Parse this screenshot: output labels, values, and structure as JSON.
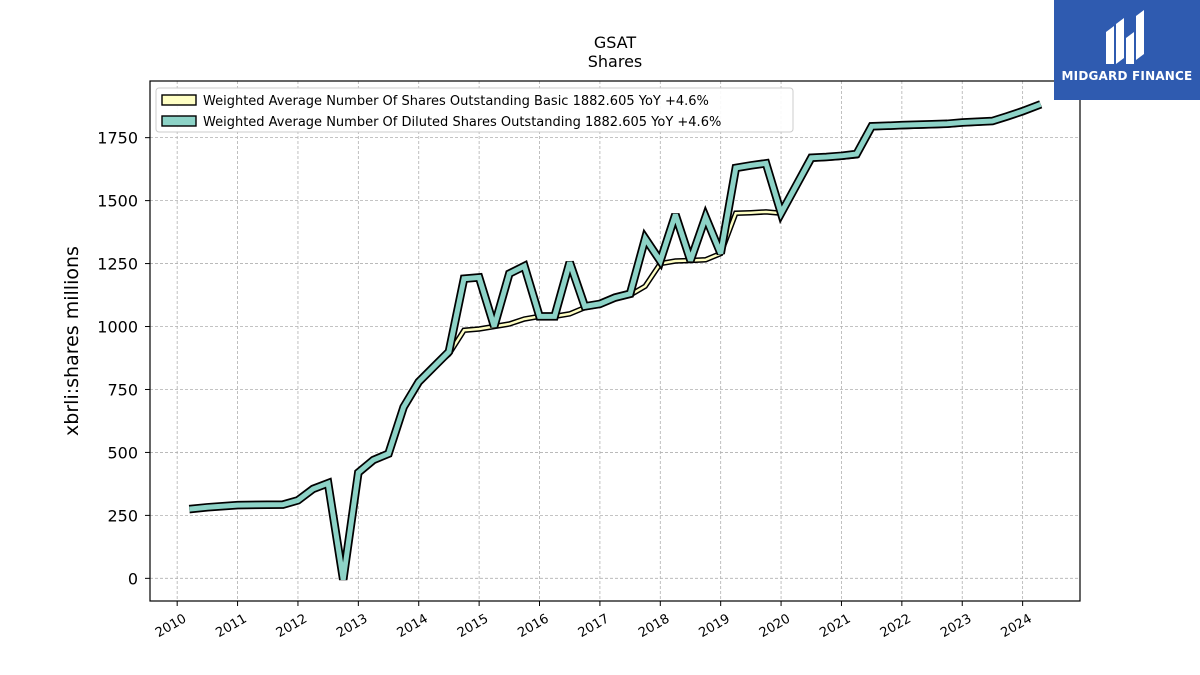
{
  "chart_data": {
    "type": "line",
    "title": "GSAT",
    "subtitle": "Shares",
    "ylabel": "xbrli:shares millions",
    "xlabel": "",
    "ylim": [
      -90,
      1975
    ],
    "xlim": [
      2009.55,
      2024.95
    ],
    "x_ticks": [
      2010,
      2011,
      2012,
      2013,
      2014,
      2015,
      2016,
      2017,
      2018,
      2019,
      2020,
      2021,
      2022,
      2023,
      2024
    ],
    "y_ticks": [
      0,
      250,
      500,
      750,
      1000,
      1250,
      1500,
      1750
    ],
    "grid": true,
    "legend_position": "top-left",
    "series": [
      {
        "name": "Weighted Average Number Of Shares Outstanding Basic  1882.605 YoY +4.6%",
        "color": "#ffffc4",
        "points": [
          [
            2010.2,
            275
          ],
          [
            2010.5,
            282
          ],
          [
            2011.0,
            291
          ],
          [
            2011.5,
            292
          ],
          [
            2011.75,
            293
          ],
          [
            2012.0,
            310
          ],
          [
            2012.25,
            355
          ],
          [
            2012.5,
            378
          ],
          [
            2012.75,
            -5
          ],
          [
            2013.0,
            420
          ],
          [
            2013.25,
            470
          ],
          [
            2013.5,
            495
          ],
          [
            2013.75,
            680
          ],
          [
            2014.0,
            780
          ],
          [
            2014.25,
            840
          ],
          [
            2014.5,
            890
          ],
          [
            2014.75,
            985
          ],
          [
            2015.0,
            990
          ],
          [
            2015.25,
            1000
          ],
          [
            2015.5,
            1010
          ],
          [
            2015.75,
            1030
          ],
          [
            2016.0,
            1040
          ],
          [
            2016.25,
            1040
          ],
          [
            2016.5,
            1050
          ],
          [
            2016.75,
            1075
          ],
          [
            2017.0,
            1085
          ],
          [
            2017.25,
            1110
          ],
          [
            2017.5,
            1125
          ],
          [
            2017.75,
            1160
          ],
          [
            2018.0,
            1250
          ],
          [
            2018.25,
            1260
          ],
          [
            2018.5,
            1262
          ],
          [
            2018.75,
            1265
          ],
          [
            2019.0,
            1290
          ],
          [
            2019.25,
            1450
          ],
          [
            2019.5,
            1452
          ],
          [
            2019.75,
            1455
          ],
          [
            2020.0,
            1450
          ],
          [
            2020.25,
            1555
          ],
          [
            2020.5,
            1665
          ],
          [
            2020.75,
            1668
          ],
          [
            2021.0,
            1672
          ],
          [
            2021.25,
            1678
          ],
          [
            2021.5,
            1790
          ],
          [
            2021.75,
            1792
          ],
          [
            2022.0,
            1794
          ],
          [
            2022.5,
            1798
          ],
          [
            2022.75,
            1800
          ],
          [
            2023.0,
            1805
          ],
          [
            2023.25,
            1808
          ],
          [
            2023.5,
            1812
          ],
          [
            2023.75,
            1830
          ],
          [
            2024.0,
            1850
          ],
          [
            2024.3,
            1882.605
          ]
        ]
      },
      {
        "name": "Weighted Average Number Of Diluted Shares Outstanding  1882.605 YoY +4.6%",
        "color": "#8dd3c7",
        "points": [
          [
            2010.2,
            275
          ],
          [
            2010.5,
            282
          ],
          [
            2011.0,
            291
          ],
          [
            2011.5,
            292
          ],
          [
            2011.75,
            293
          ],
          [
            2012.0,
            310
          ],
          [
            2012.25,
            355
          ],
          [
            2012.5,
            378
          ],
          [
            2012.75,
            -5
          ],
          [
            2013.0,
            420
          ],
          [
            2013.25,
            470
          ],
          [
            2013.5,
            495
          ],
          [
            2013.75,
            680
          ],
          [
            2014.0,
            780
          ],
          [
            2014.25,
            840
          ],
          [
            2014.5,
            900
          ],
          [
            2014.75,
            1190
          ],
          [
            2015.0,
            1195
          ],
          [
            2015.25,
            1000
          ],
          [
            2015.5,
            1210
          ],
          [
            2015.75,
            1240
          ],
          [
            2016.0,
            1040
          ],
          [
            2016.25,
            1040
          ],
          [
            2016.5,
            1255
          ],
          [
            2016.75,
            1080
          ],
          [
            2017.0,
            1090
          ],
          [
            2017.25,
            1115
          ],
          [
            2017.5,
            1130
          ],
          [
            2017.75,
            1350
          ],
          [
            2018.0,
            1260
          ],
          [
            2018.25,
            1445
          ],
          [
            2018.5,
            1262
          ],
          [
            2018.75,
            1435
          ],
          [
            2019.0,
            1290
          ],
          [
            2019.25,
            1630
          ],
          [
            2019.5,
            1640
          ],
          [
            2019.75,
            1648
          ],
          [
            2020.0,
            1450
          ],
          [
            2020.25,
            1560
          ],
          [
            2020.5,
            1670
          ],
          [
            2020.75,
            1673
          ],
          [
            2021.0,
            1678
          ],
          [
            2021.25,
            1685
          ],
          [
            2021.5,
            1795
          ],
          [
            2021.75,
            1797
          ],
          [
            2022.0,
            1800
          ],
          [
            2022.5,
            1803
          ],
          [
            2022.75,
            1805
          ],
          [
            2023.0,
            1810
          ],
          [
            2023.25,
            1813
          ],
          [
            2023.5,
            1816
          ],
          [
            2023.75,
            1835
          ],
          [
            2024.0,
            1855
          ],
          [
            2024.3,
            1882.605
          ]
        ]
      }
    ]
  },
  "logo": {
    "text": "MIDGARD FINANCE",
    "background": "#2f5bb0"
  }
}
